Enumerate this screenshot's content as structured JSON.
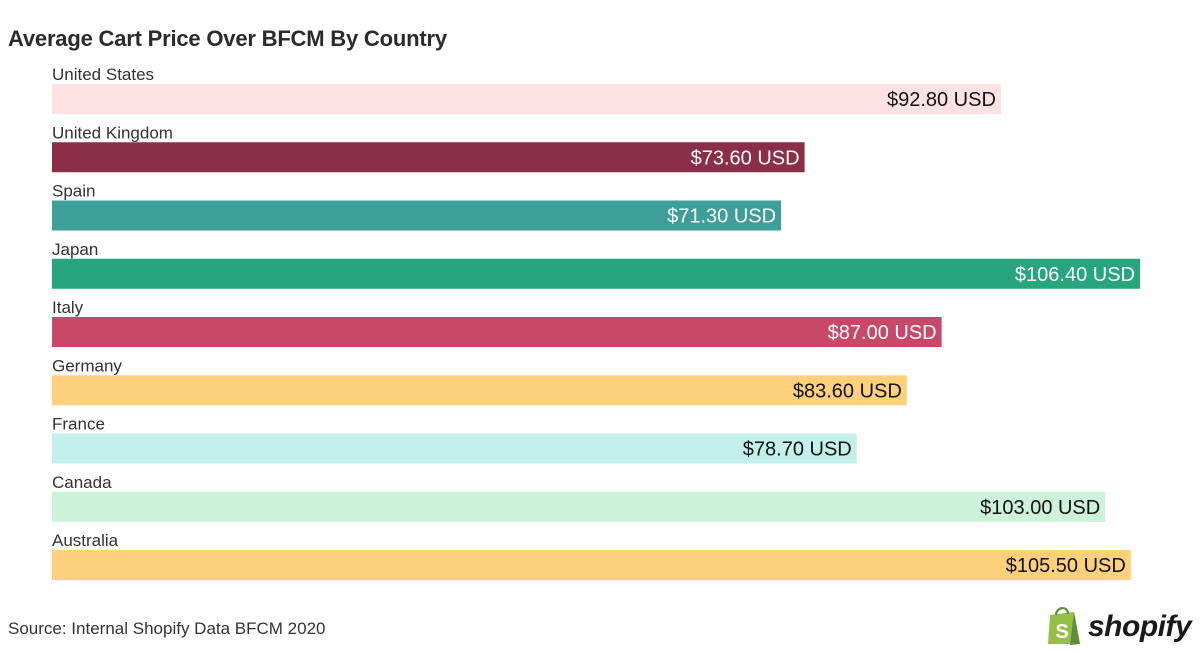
{
  "title": "Average Cart Price Over BFCM By Country",
  "source": "Source: Internal Shopify Data BFCM 2020",
  "logo": {
    "text": "shopify",
    "icon": "shopify-bag-icon",
    "icon_color": "#95bf47"
  },
  "chart_data": {
    "type": "bar",
    "orientation": "horizontal",
    "title": "Average Cart Price Over BFCM By Country",
    "categories": [
      "United States",
      "United Kingdom",
      "Spain",
      "Japan",
      "Italy",
      "Germany",
      "France",
      "Canada",
      "Australia"
    ],
    "values": [
      92.8,
      73.6,
      71.3,
      106.4,
      87.0,
      83.6,
      78.7,
      103.0,
      105.5
    ],
    "value_labels": [
      "$92.80 USD",
      "$73.60 USD",
      "$71.30 USD",
      "$106.40 USD",
      "$87.00 USD",
      "$83.60 USD",
      "$78.70 USD",
      "$103.00 USD",
      "$105.50 USD"
    ],
    "colors": [
      "#fde2e4",
      "#8b2e47",
      "#3e9f9a",
      "#27a57c",
      "#c94767",
      "#fdd17c",
      "#c3f0eb",
      "#ccf2da",
      "#fdd17c"
    ],
    "label_colors": [
      "#111111",
      "#ffffff",
      "#ffffff",
      "#ffffff",
      "#ffffff",
      "#111111",
      "#111111",
      "#111111",
      "#111111"
    ],
    "xlim": [
      0,
      106.4
    ],
    "grid": false,
    "legend": "none"
  }
}
